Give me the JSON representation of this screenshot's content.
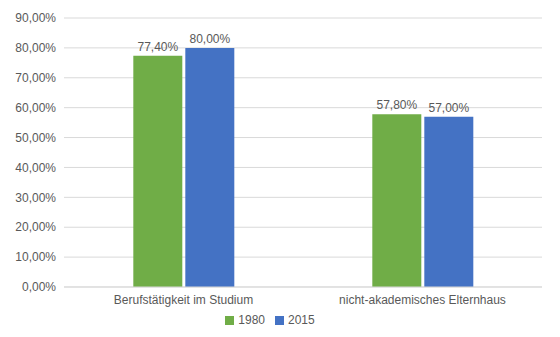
{
  "chart_data": {
    "type": "bar",
    "categories": [
      "Berufstätigkeit im  Studium",
      "nicht-akademisches Elternhaus"
    ],
    "series": [
      {
        "name": "1980",
        "color": "#70ad47",
        "values": [
          77.4,
          57.8
        ],
        "value_labels": [
          "77,40%",
          "57,80%"
        ]
      },
      {
        "name": "2015",
        "color": "#4472c4",
        "values": [
          80,
          57
        ],
        "value_labels": [
          "80,00%",
          "57,00%"
        ]
      }
    ],
    "ylim": [
      0,
      90
    ],
    "yticks": [
      {
        "value": 0,
        "label": "0,00%"
      },
      {
        "value": 10,
        "label": "10,00%"
      },
      {
        "value": 20,
        "label": "20,00%"
      },
      {
        "value": 30,
        "label": "30,00%"
      },
      {
        "value": 40,
        "label": "40,00%"
      },
      {
        "value": 50,
        "label": "50,00%"
      },
      {
        "value": 60,
        "label": "60,00%"
      },
      {
        "value": 70,
        "label": "70,00%"
      },
      {
        "value": 80,
        "label": "80,00%"
      },
      {
        "value": 90,
        "label": "90,00%"
      }
    ],
    "grid": true,
    "legend": "bottom",
    "data_labels": true
  }
}
